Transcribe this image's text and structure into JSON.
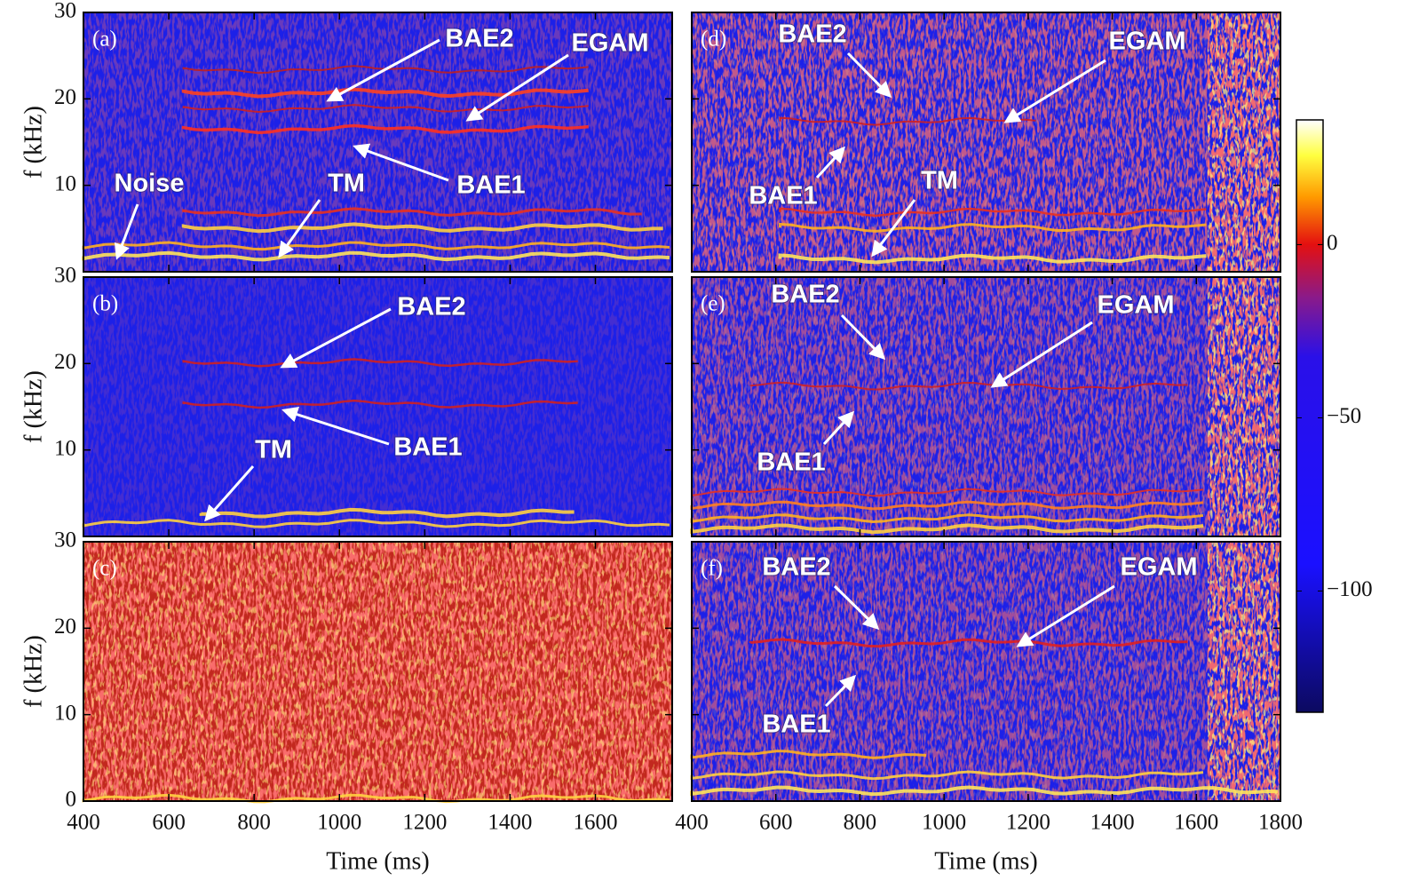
{
  "chart_data": {
    "type": "spectrogram",
    "x_label": "Time (ms)",
    "y_label": "f (kHz)",
    "ylim": [
      0,
      30
    ],
    "yticks": [
      0,
      10,
      20,
      30
    ],
    "columns": [
      {
        "xlim": [
          400,
          1780
        ],
        "xticks": [
          400,
          600,
          800,
          1000,
          1200,
          1400,
          1600
        ],
        "panels": [
          {
            "label": "(a)",
            "annotations": [
              "BAE2",
              "EGAM",
              "BAE1",
              "Noise",
              "TM"
            ]
          },
          {
            "label": "(b)",
            "annotations": [
              "BAE2",
              "BAE1",
              "TM"
            ]
          },
          {
            "label": "(c)",
            "annotations": []
          }
        ]
      },
      {
        "xlim": [
          400,
          1800
        ],
        "xticks": [
          400,
          600,
          800,
          1000,
          1200,
          1400,
          1600,
          1800
        ],
        "panels": [
          {
            "label": "(d)",
            "annotations": [
              "BAE2",
              "EGAM",
              "BAE1",
              "TM"
            ]
          },
          {
            "label": "(e)",
            "annotations": [
              "BAE2",
              "EGAM",
              "BAE1"
            ]
          },
          {
            "label": "(f)",
            "annotations": [
              "BAE2",
              "EGAM",
              "BAE1"
            ]
          }
        ]
      }
    ],
    "colorbar": {
      "lim": [
        -135,
        36
      ],
      "ticks": [
        0,
        {
          "value": -50,
          "label": "−50"
        },
        {
          "value": -100,
          "label": "−100"
        }
      ]
    }
  }
}
